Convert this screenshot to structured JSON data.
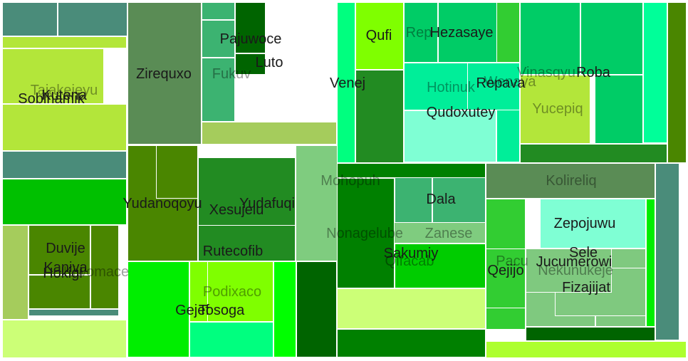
{
  "chart_data": {
    "type": "treemap",
    "title": "",
    "nodes": [
      {
        "label": "",
        "color": "#4a8c7a"
      },
      {
        "label": "",
        "color": "#4a8c7a"
      },
      {
        "label": "Tajakejeyu",
        "color": "#b3e63a",
        "weak": true
      },
      {
        "label": "Kutena",
        "color": "#b3e63a"
      },
      {
        "label": "Sobihamik",
        "color": "#b3e63a"
      },
      {
        "label": "",
        "color": "#4a8c7a"
      },
      {
        "label": "",
        "color": "#00c000"
      },
      {
        "label": "",
        "color": "#a5cc5c"
      },
      {
        "label": "Duvije",
        "color": "#4a8600"
      },
      {
        "label": "Kaniva",
        "color": "#4a8600"
      },
      {
        "label": "Hokigi",
        "color": "#4a8600"
      },
      {
        "label": "Kiwomace",
        "color": "#4a8600",
        "weak": true
      },
      {
        "label": "",
        "color": "#4a8c7a"
      },
      {
        "label": "",
        "color": "#ccff77"
      },
      {
        "label": "Zirequxo",
        "color": "#5a8c55"
      },
      {
        "label": "",
        "color": "#3cb371"
      },
      {
        "label": "Pajuwoce",
        "color": "#3cb371"
      },
      {
        "label": "",
        "color": "#006400"
      },
      {
        "label": "Luto",
        "color": "#006400"
      },
      {
        "label": "Fukuv",
        "color": "#3cb371",
        "weak": true
      },
      {
        "label": "",
        "color": "#a5cc5c"
      },
      {
        "label": "Yudanoqoyu",
        "color": "#4a8600"
      },
      {
        "label": "Xesujelu",
        "color": "#4a8600"
      },
      {
        "label": "",
        "color": "#7cdd7c"
      },
      {
        "label": "Yudafuqi",
        "color": "#228b22"
      },
      {
        "label": "Rutecofib",
        "color": "#228b22"
      },
      {
        "label": "Mohopuh",
        "color": "#7fcc7f",
        "weak": true
      },
      {
        "label": "",
        "color": "#00ff7f"
      },
      {
        "label": "Venej",
        "color": "#00ff7f"
      },
      {
        "label": "Qufi",
        "color": "#7fff00"
      },
      {
        "label": "",
        "color": "#228b22"
      },
      {
        "label": "Rep",
        "color": "#00cc66",
        "weak": true
      },
      {
        "label": "Hezasaye",
        "color": "#00cc66"
      },
      {
        "label": "",
        "color": "#32cd32"
      },
      {
        "label": "Hotinuk",
        "color": "#00ee99",
        "weak": true
      },
      {
        "label": "Wenava",
        "color": "#00ee99",
        "weak": true
      },
      {
        "label": "Repava",
        "color": "#00ee99"
      },
      {
        "label": "Qudoxutey",
        "color": "#7fffd4"
      },
      {
        "label": "",
        "color": "#00cc66"
      },
      {
        "label": "Vinasqyu",
        "color": "#00cc66",
        "weak": true
      },
      {
        "label": "Roba",
        "color": "#00cc66"
      },
      {
        "label": "Yucepiq",
        "color": "#b3e63a",
        "weak": true
      },
      {
        "label": "",
        "color": "#00ff99"
      },
      {
        "label": "",
        "color": "#4a8600"
      },
      {
        "label": "",
        "color": "#228b22"
      },
      {
        "label": "Gejef",
        "color": "#00ee00"
      },
      {
        "label": "Tosoga",
        "color": "#7fff00"
      },
      {
        "label": "Podixaco",
        "color": "#7fff00",
        "weak": true
      },
      {
        "label": "",
        "color": "#00ff7f"
      },
      {
        "label": "",
        "color": "#00ff00"
      },
      {
        "label": "",
        "color": "#006400"
      },
      {
        "label": "",
        "color": "#008000"
      },
      {
        "label": "Dala",
        "color": "#3cb371"
      },
      {
        "label": "Zanese",
        "color": "#3cb371",
        "weak": true
      },
      {
        "label": "Nonagelube",
        "color": "#7fcc7f",
        "weak": true
      },
      {
        "label": "Sakumiy",
        "color": "#008000"
      },
      {
        "label": "Qifacab",
        "color": "#00cc00",
        "weak": true
      },
      {
        "label": "",
        "color": "#ccff77"
      },
      {
        "label": "",
        "color": "#008000"
      },
      {
        "label": "Kolireliq",
        "color": "#5a8c55",
        "weak": true
      },
      {
        "label": "Zepojuwu",
        "color": "#7fffd4"
      },
      {
        "label": "Sele",
        "color": "#7fc97f"
      },
      {
        "label": "Jucumerowi",
        "color": "#7fc97f"
      },
      {
        "label": "Fizajijat",
        "color": "#7fc97f"
      },
      {
        "label": "Pacu",
        "color": "#32cd32",
        "weak": true
      },
      {
        "label": "Qejijo",
        "color": "#32cd32"
      },
      {
        "label": "Nekunukeje",
        "color": "#7fc97f",
        "weak": true
      },
      {
        "label": "",
        "color": "#006400"
      },
      {
        "label": "",
        "color": "#4a8c7a"
      },
      {
        "label": "",
        "color": "#00ee00"
      },
      {
        "label": "",
        "color": "#adff2f"
      }
    ]
  }
}
